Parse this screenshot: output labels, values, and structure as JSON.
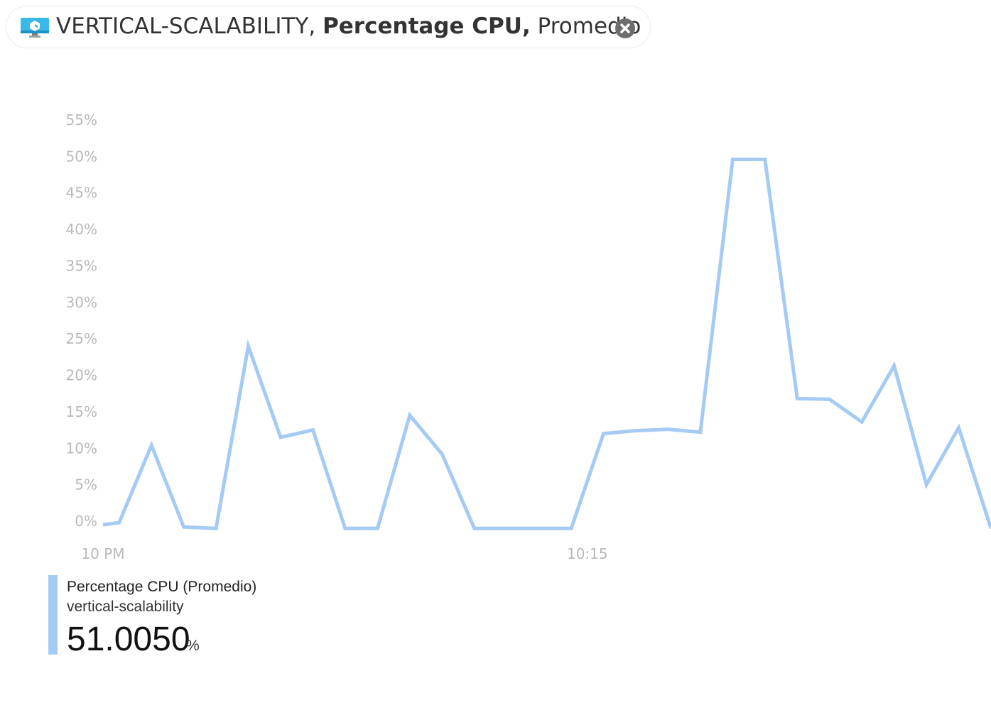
{
  "header": {
    "resource": "VERTICAL-SCALABILITY,",
    "metric": "Percentage CPU,",
    "aggregation": "Promedio",
    "icon": "virtual-machine-icon",
    "close_icon": "close-icon"
  },
  "legend": {
    "metric_label": "Percentage CPU (Promedio)",
    "resource_label": "vertical-scalability",
    "value": "51.0050",
    "unit": "%",
    "color": "#a5cbf5"
  },
  "chart_data": {
    "type": "line",
    "title": "",
    "xlabel": "",
    "ylabel": "",
    "ylim": [
      0,
      55
    ],
    "y_ticks": [
      "0%",
      "5%",
      "10%",
      "15%",
      "20%",
      "25%",
      "30%",
      "35%",
      "40%",
      "45%",
      "50%",
      "55%"
    ],
    "y_tick_values": [
      0,
      5,
      10,
      15,
      20,
      25,
      30,
      35,
      40,
      45,
      50,
      55
    ],
    "x_tick_labels": [
      "10 PM",
      "10:15"
    ],
    "x_tick_values": [
      0,
      15
    ],
    "xlim": [
      0,
      27.5
    ],
    "grid": false,
    "legend_position": "bottom-left",
    "series": [
      {
        "color": "#a5cbf5",
        "x": [
          0,
          0.5,
          1.5,
          2.5,
          3.5,
          4.5,
          5.5,
          6.5,
          7.5,
          8.5,
          9.5,
          10.5,
          11.5,
          12.5,
          13.5,
          14.5,
          15.5,
          16.5,
          17.5,
          18.5,
          19.5,
          20.5,
          21.5,
          22.5,
          23.5,
          24.5,
          25.5,
          26.5,
          27.5
        ],
        "values": [
          -0.5,
          -0.2,
          10.4,
          -0.8,
          -1.0,
          24.0,
          11.5,
          12.5,
          -1.0,
          -1.0,
          14.5,
          9.2,
          -1.0,
          -1.0,
          -1.0,
          -1.0,
          12.0,
          12.4,
          12.6,
          12.2,
          49.6,
          49.6,
          16.8,
          16.7,
          13.6,
          21.3,
          5.0,
          12.8,
          -1.0
        ]
      }
    ]
  }
}
